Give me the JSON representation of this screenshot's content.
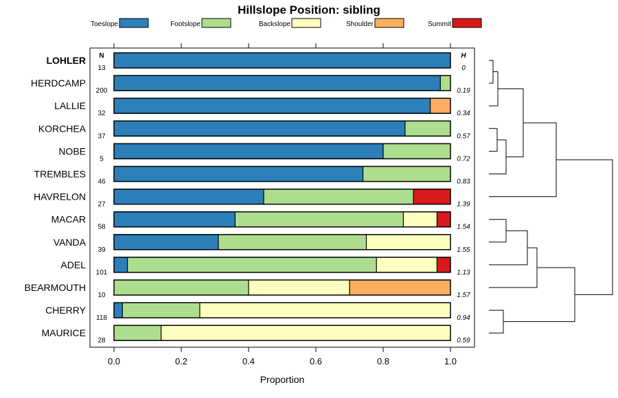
{
  "chart_data": {
    "type": "bar",
    "orientation": "horizontal",
    "stacked": true,
    "title": "Hillslope Position: sibling",
    "xlabel": "Proportion",
    "ylabel": "",
    "xlim": [
      0,
      1
    ],
    "x_ticks": [
      "0.0",
      "0.2",
      "0.4",
      "0.6",
      "0.8",
      "1.0"
    ],
    "n_header": "N",
    "h_header": "H",
    "highlight_category": "LOHLER",
    "legend_position": "top",
    "series": [
      {
        "name": "Toeslope",
        "color": "#2c7fb8"
      },
      {
        "name": "Footslope",
        "color": "#addd8e"
      },
      {
        "name": "Backslope",
        "color": "#ffffbf"
      },
      {
        "name": "Shoulder",
        "color": "#fdae61"
      },
      {
        "name": "Summit",
        "color": "#d7191c"
      }
    ],
    "categories": [
      {
        "name": "LOHLER",
        "n": "13",
        "h": "0",
        "values": [
          1.0,
          0.0,
          0.0,
          0.0,
          0.0
        ]
      },
      {
        "name": "HERDCAMP",
        "n": "200",
        "h": "0.19",
        "values": [
          0.97,
          0.03,
          0.0,
          0.0,
          0.0
        ]
      },
      {
        "name": "LALLIE",
        "n": "32",
        "h": "0.34",
        "values": [
          0.94,
          0.0,
          0.0,
          0.06,
          0.0
        ]
      },
      {
        "name": "KORCHEA",
        "n": "37",
        "h": "0.57",
        "values": [
          0.865,
          0.135,
          0.0,
          0.0,
          0.0
        ]
      },
      {
        "name": "NOBE",
        "n": "5",
        "h": "0.72",
        "values": [
          0.8,
          0.2,
          0.0,
          0.0,
          0.0
        ]
      },
      {
        "name": "TREMBLES",
        "n": "46",
        "h": "0.83",
        "values": [
          0.74,
          0.26,
          0.0,
          0.0,
          0.0
        ]
      },
      {
        "name": "HAVRELON",
        "n": "27",
        "h": "1.39",
        "values": [
          0.445,
          0.445,
          0.0,
          0.0,
          0.11
        ]
      },
      {
        "name": "MACAR",
        "n": "58",
        "h": "1.54",
        "values": [
          0.36,
          0.5,
          0.1,
          0.0,
          0.04
        ]
      },
      {
        "name": "VANDA",
        "n": "39",
        "h": "1.55",
        "values": [
          0.31,
          0.44,
          0.25,
          0.0,
          0.0
        ]
      },
      {
        "name": "ADEL",
        "n": "101",
        "h": "1.13",
        "values": [
          0.04,
          0.74,
          0.18,
          0.0,
          0.04
        ]
      },
      {
        "name": "BEARMOUTH",
        "n": "10",
        "h": "1.57",
        "values": [
          0.0,
          0.4,
          0.3,
          0.3,
          0.0
        ]
      },
      {
        "name": "CHERRY",
        "n": "118",
        "h": "0.94",
        "values": [
          0.025,
          0.23,
          0.745,
          0.0,
          0.0
        ]
      },
      {
        "name": "MAURICE",
        "n": "28",
        "h": "0.59",
        "values": [
          0.0,
          0.14,
          0.86,
          0.0,
          0.0
        ]
      }
    ]
  }
}
